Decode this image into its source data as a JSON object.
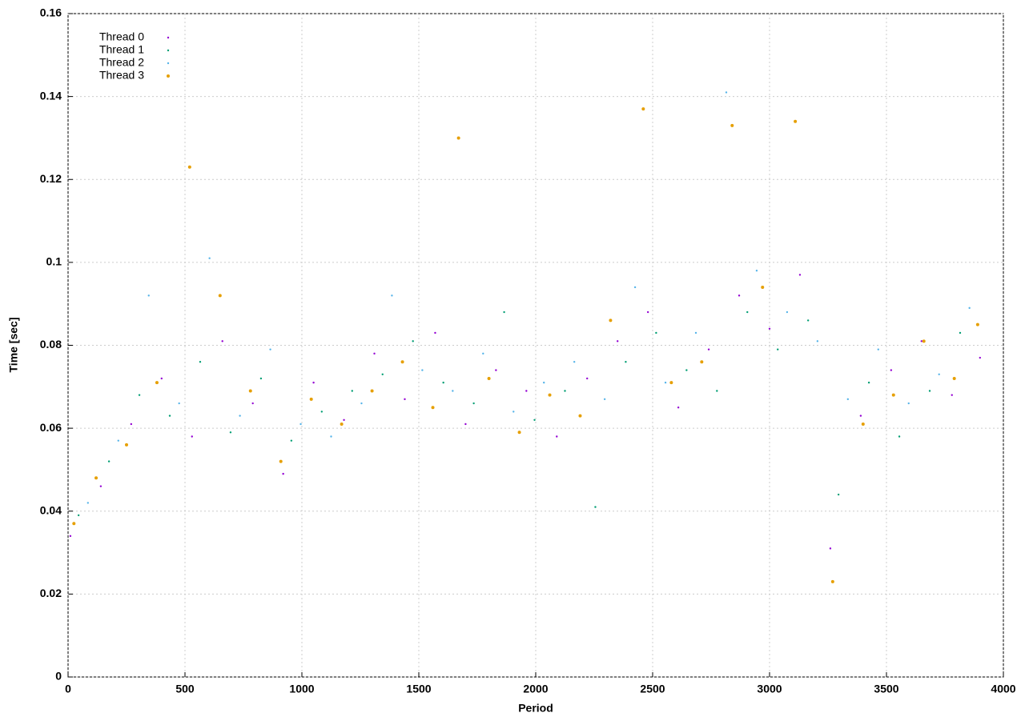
{
  "chart_data": {
    "type": "scatter",
    "xlabel": "Period",
    "ylabel": "Time [sec]",
    "xlim": [
      0,
      4000
    ],
    "xticks": [
      0,
      500,
      1000,
      1500,
      2000,
      2500,
      3000,
      3500,
      4000
    ],
    "ylim": [
      0,
      0.16
    ],
    "yticks": [
      0,
      0.02,
      0.04,
      0.06,
      0.08,
      0.1,
      0.12,
      0.14,
      0.16
    ],
    "grid": true,
    "legend": "top-left",
    "series": [
      {
        "name": "Thread 0",
        "color": "#9400d3",
        "x": [
          10,
          140,
          270,
          400,
          530,
          660,
          790,
          920,
          1050,
          1180,
          1310,
          1440,
          1570,
          1700,
          1830,
          1960,
          2090,
          2220,
          2350,
          2480,
          2610,
          2740,
          2870,
          3000,
          3130,
          3260,
          3390,
          3520,
          3650,
          3780,
          3900
        ],
        "values": [
          0.034,
          0.046,
          0.061,
          0.072,
          0.058,
          0.081,
          0.066,
          0.049,
          0.071,
          0.062,
          0.078,
          0.067,
          0.083,
          0.061,
          0.074,
          0.069,
          0.058,
          0.072,
          0.081,
          0.088,
          0.065,
          0.079,
          0.092,
          0.084,
          0.097,
          0.031,
          0.063,
          0.074,
          0.081,
          0.068,
          0.077
        ]
      },
      {
        "name": "Thread 1",
        "color": "#009e73",
        "x": [
          45,
          175,
          305,
          435,
          565,
          695,
          825,
          955,
          1085,
          1215,
          1345,
          1475,
          1605,
          1735,
          1865,
          1995,
          2125,
          2255,
          2385,
          2515,
          2645,
          2775,
          2905,
          3035,
          3165,
          3295,
          3425,
          3555,
          3685,
          3815
        ],
        "values": [
          0.039,
          0.052,
          0.068,
          0.063,
          0.076,
          0.059,
          0.072,
          0.057,
          0.064,
          0.069,
          0.073,
          0.081,
          0.071,
          0.066,
          0.088,
          0.062,
          0.069,
          0.041,
          0.076,
          0.083,
          0.074,
          0.069,
          0.088,
          0.079,
          0.086,
          0.044,
          0.071,
          0.058,
          0.069,
          0.083
        ]
      },
      {
        "name": "Thread 2",
        "color": "#56b4e9",
        "x": [
          85,
          215,
          345,
          475,
          605,
          735,
          865,
          995,
          1125,
          1255,
          1385,
          1515,
          1645,
          1775,
          1905,
          2035,
          2165,
          2295,
          2425,
          2555,
          2685,
          2815,
          2945,
          3075,
          3205,
          3335,
          3465,
          3595,
          3725,
          3855
        ],
        "values": [
          0.042,
          0.057,
          0.092,
          0.066,
          0.101,
          0.063,
          0.079,
          0.061,
          0.058,
          0.066,
          0.092,
          0.074,
          0.069,
          0.078,
          0.064,
          0.071,
          0.076,
          0.067,
          0.094,
          0.071,
          0.083,
          0.141,
          0.098,
          0.088,
          0.081,
          0.067,
          0.079,
          0.066,
          0.073,
          0.089
        ]
      },
      {
        "name": "Thread 3",
        "color": "#e69f00",
        "x": [
          25,
          120,
          250,
          380,
          520,
          650,
          780,
          910,
          1040,
          1170,
          1300,
          1430,
          1560,
          1670,
          1800,
          1930,
          2060,
          2190,
          2320,
          2460,
          2580,
          2710,
          2840,
          2970,
          3110,
          3270,
          3400,
          3530,
          3660,
          3790,
          3890
        ],
        "values": [
          0.037,
          0.048,
          0.056,
          0.071,
          0.123,
          0.092,
          0.069,
          0.052,
          0.067,
          0.061,
          0.069,
          0.076,
          0.065,
          0.13,
          0.072,
          0.059,
          0.068,
          0.063,
          0.086,
          0.137,
          0.071,
          0.076,
          0.133,
          0.094,
          0.134,
          0.023,
          0.061,
          0.068,
          0.081,
          0.072,
          0.085
        ]
      }
    ]
  }
}
